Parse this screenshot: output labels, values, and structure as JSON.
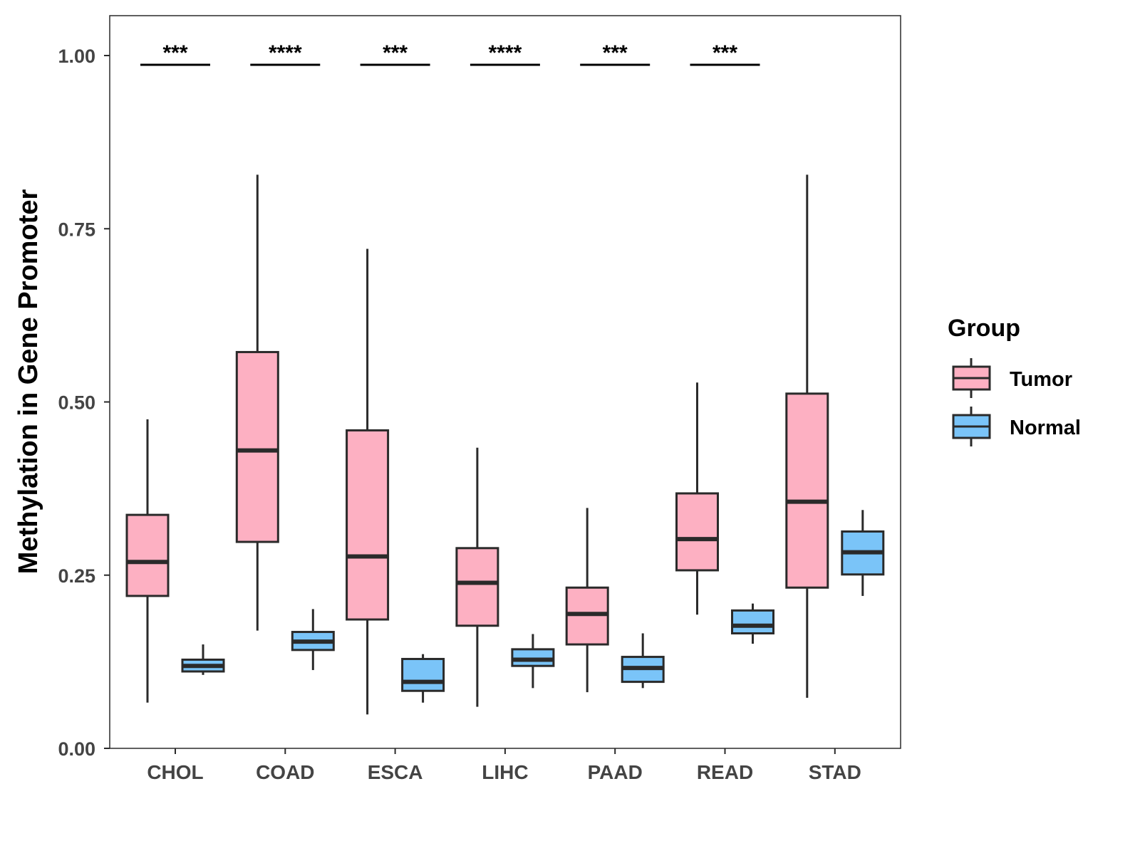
{
  "chart_data": {
    "type": "boxplot",
    "title": "",
    "xlabel": "",
    "ylabel": "Methylation in Gene Promoter",
    "ylim": [
      0,
      1.05
    ],
    "yticks": [
      "0.00",
      "0.25",
      "0.50",
      "0.75",
      "1.00"
    ],
    "ytick_values": [
      0,
      0.25,
      0.5,
      0.75,
      1.0
    ],
    "categories": [
      "CHOL",
      "COAD",
      "ESCA",
      "LIHC",
      "PAAD",
      "READ",
      "STAD"
    ],
    "legend": {
      "title": "Group",
      "position": "right",
      "entries": [
        "Tumor",
        "Normal"
      ]
    },
    "colors": {
      "Tumor": "#FDB0C2",
      "Normal": "#7AC4F8",
      "stroke": "#2a2a2a"
    },
    "series": [
      {
        "name": "Tumor",
        "boxes": [
          {
            "min": 0.066,
            "q1": 0.22,
            "median": 0.269,
            "q3": 0.337,
            "max": 0.475
          },
          {
            "min": 0.17,
            "q1": 0.298,
            "median": 0.43,
            "q3": 0.572,
            "max": 0.828
          },
          {
            "min": 0.049,
            "q1": 0.186,
            "median": 0.277,
            "q3": 0.459,
            "max": 0.721
          },
          {
            "min": 0.06,
            "q1": 0.177,
            "median": 0.239,
            "q3": 0.289,
            "max": 0.434
          },
          {
            "min": 0.081,
            "q1": 0.15,
            "median": 0.194,
            "q3": 0.232,
            "max": 0.347
          },
          {
            "min": 0.193,
            "q1": 0.257,
            "median": 0.302,
            "q3": 0.368,
            "max": 0.528
          },
          {
            "min": 0.073,
            "q1": 0.232,
            "median": 0.356,
            "q3": 0.512,
            "max": 0.828
          }
        ]
      },
      {
        "name": "Normal",
        "boxes": [
          {
            "min": 0.106,
            "q1": 0.111,
            "median": 0.119,
            "q3": 0.128,
            "max": 0.15
          },
          {
            "min": 0.113,
            "q1": 0.142,
            "median": 0.154,
            "q3": 0.168,
            "max": 0.201
          },
          {
            "min": 0.066,
            "q1": 0.083,
            "median": 0.096,
            "q3": 0.129,
            "max": 0.136
          },
          {
            "min": 0.087,
            "q1": 0.119,
            "median": 0.128,
            "q3": 0.143,
            "max": 0.165
          },
          {
            "min": 0.087,
            "q1": 0.096,
            "median": 0.116,
            "q3": 0.132,
            "max": 0.166
          },
          {
            "min": 0.151,
            "q1": 0.166,
            "median": 0.177,
            "q3": 0.199,
            "max": 0.209
          },
          {
            "min": 0.22,
            "q1": 0.251,
            "median": 0.283,
            "q3": 0.313,
            "max": 0.344
          }
        ]
      }
    ],
    "significance": [
      {
        "category": "CHOL",
        "label": "***"
      },
      {
        "category": "COAD",
        "label": "****"
      },
      {
        "category": "ESCA",
        "label": "***"
      },
      {
        "category": "LIHC",
        "label": "****"
      },
      {
        "category": "PAAD",
        "label": "***"
      },
      {
        "category": "READ",
        "label": "***"
      }
    ],
    "grid": false
  }
}
